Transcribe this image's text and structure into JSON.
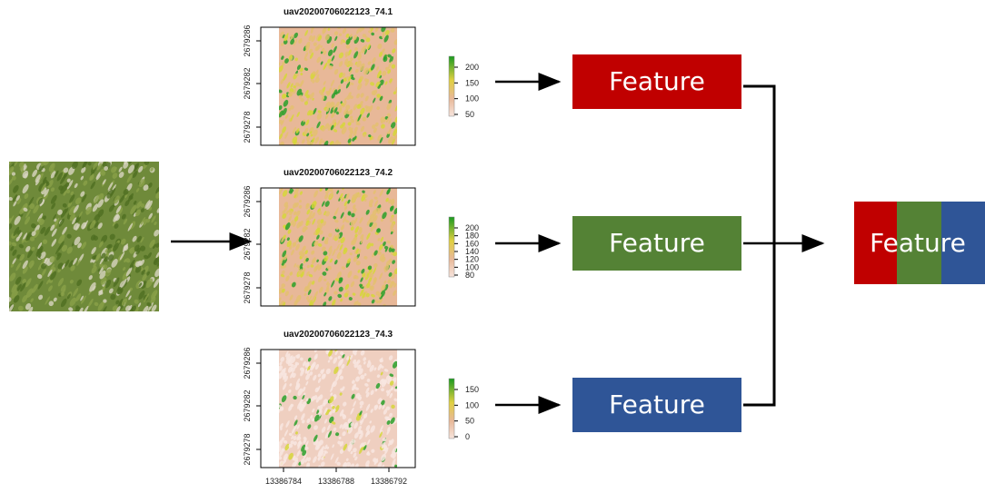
{
  "panels": [
    {
      "title": "uav20200706022123_74.1",
      "y_ticks": [
        "2679278",
        "2679282",
        "2679286"
      ],
      "legend_ticks": [
        "50",
        "100",
        "150",
        "200"
      ]
    },
    {
      "title": "uav20200706022123_74.2",
      "y_ticks": [
        "2679278",
        "2679282",
        "2679286"
      ],
      "legend_ticks": [
        "80",
        "100",
        "120",
        "140",
        "160",
        "180",
        "200"
      ]
    },
    {
      "title": "uav20200706022123_74.3",
      "y_ticks": [
        "2679278",
        "2679282",
        "2679286"
      ],
      "legend_ticks": [
        "0",
        "50",
        "100",
        "150"
      ],
      "x_ticks": [
        "13386784",
        "13386788",
        "13386792"
      ]
    }
  ],
  "features": [
    "Feature",
    "Feature",
    "Feature"
  ],
  "combined": "Feature"
}
